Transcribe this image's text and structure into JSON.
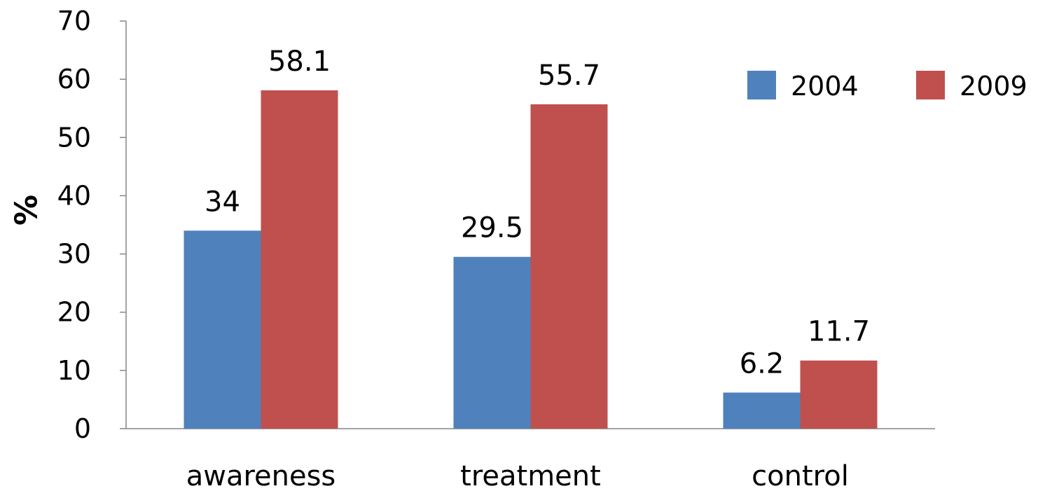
{
  "chart_data": {
    "type": "bar",
    "title": "",
    "xlabel": "",
    "ylabel": "%",
    "ylim": [
      0,
      70
    ],
    "yticks": [
      0,
      10,
      20,
      30,
      40,
      50,
      60,
      70
    ],
    "categories": [
      "awareness",
      "treatment",
      "control"
    ],
    "series": [
      {
        "name": "2004",
        "color": "#4f81bd",
        "values": [
          34,
          29.5,
          6.2
        ],
        "labels": [
          "34",
          "29.5",
          "6.2"
        ]
      },
      {
        "name": "2009",
        "color": "#c0504d",
        "values": [
          58.1,
          55.7,
          11.7
        ],
        "labels": [
          "58.1",
          "55.7",
          "11.7"
        ]
      }
    ],
    "grid": false,
    "legend": "top-right"
  }
}
